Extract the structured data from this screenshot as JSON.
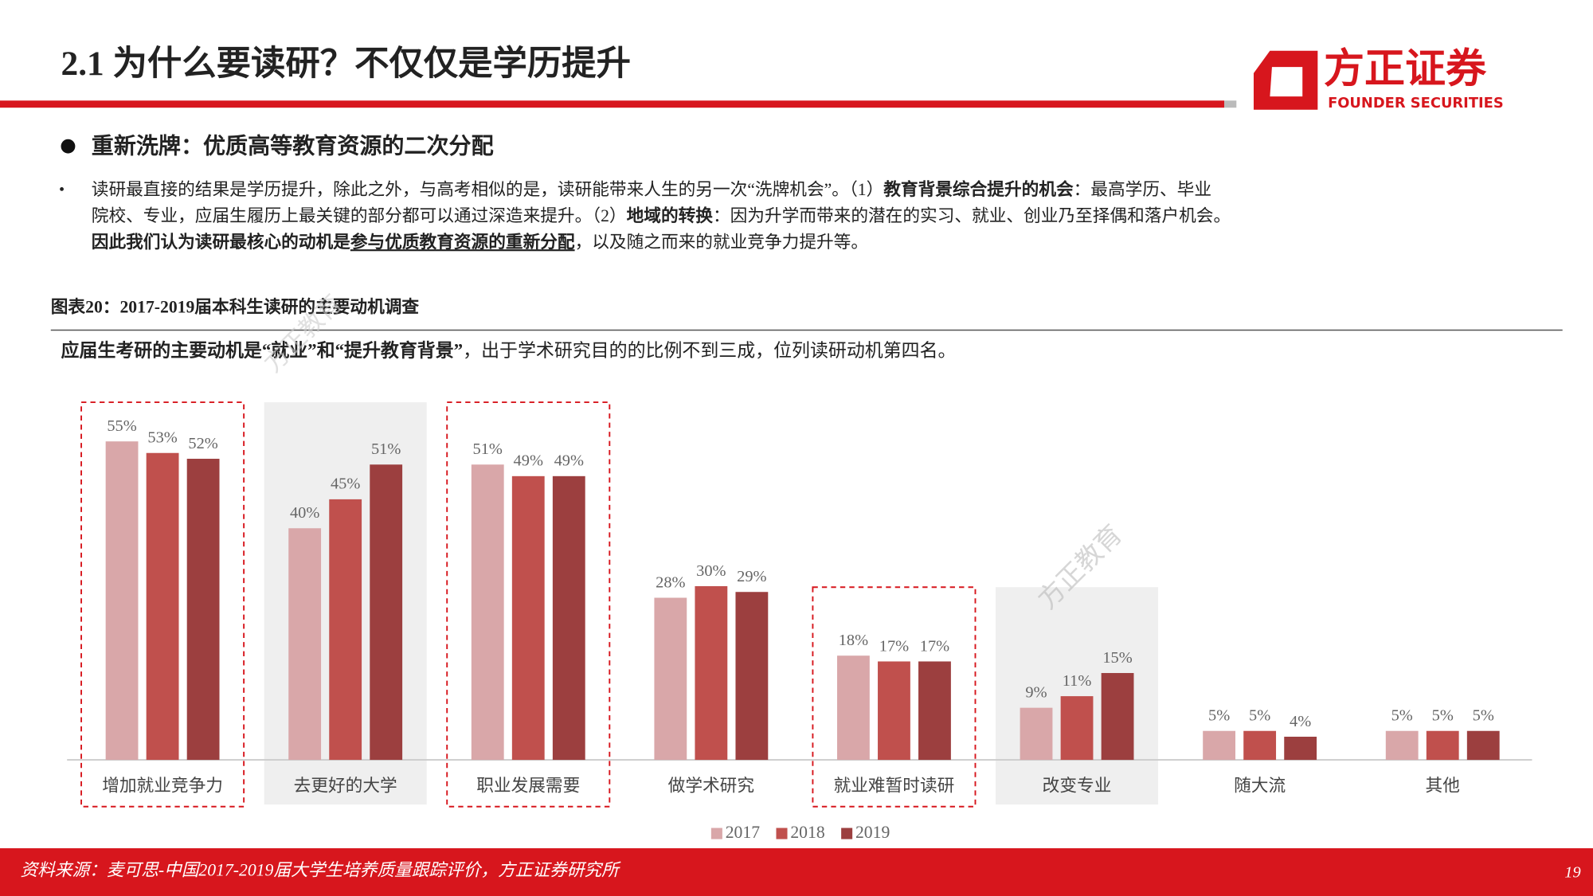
{
  "header": {
    "title": "2.1 为什么要读研？不仅仅是学历提升",
    "logo_cn": "方正证券",
    "logo_en": "FOUNDER SECURITIES"
  },
  "section_title": "重新洗牌：优质高等教育资源的二次分配",
  "paragraph": [
    [
      "读研最直接的结果是学历提升，除此之外，与高考相似的是，读研能带来人生的另一次“洗牌机会”。（1）",
      "教育背景综合提升的机会",
      "：最高学历、毕业"
    ],
    [
      "院校、专业，应届生履历上最关键的部分都可以通过深造来提升。（2）",
      "地域的转换",
      "：因为升学而带来的潜在的实习、就业、创业乃至择偶和落户机会。"
    ],
    [
      "因此我们认为读研最核心的动机是",
      "参与优质教育资源的重新分配",
      "，以及随之而来的就业竞争力提升等。"
    ]
  ],
  "watermark": "方正教育",
  "chart_data": {
    "type": "bar",
    "title": "图表20：2017-2019届本科生读研的主要动机调查",
    "subtitle": [
      "应届生考研的主要动机是“就业”和“提升教育背景”",
      "，出于学术研究目的的比例不到三成，位列读研动机第四名。"
    ],
    "categories": [
      "增加就业竞争力",
      "去更好的大学",
      "职业发展需要",
      "做学术研究",
      "就业难暂时读研",
      "改变专业",
      "随大流",
      "其他"
    ],
    "series": [
      {
        "name": "2017",
        "color": "#d9a7a9",
        "values": [
          55,
          40,
          51,
          28,
          18,
          9,
          5,
          5
        ],
        "value_labels": [
          "55%",
          "40%",
          "51%",
          "28%",
          "18%",
          "9%",
          "5%",
          "5%"
        ]
      },
      {
        "name": "2018",
        "color": "#c0504d",
        "values": [
          53,
          45,
          49,
          30,
          17,
          11,
          5,
          5
        ],
        "value_labels": [
          "53%",
          "45%",
          "49%",
          "30%",
          "17%",
          "11%",
          "5%",
          "5%"
        ]
      },
      {
        "name": "2019",
        "color": "#9c3f3f",
        "values": [
          52,
          51,
          49,
          29,
          17,
          15,
          4,
          5
        ],
        "value_labels": [
          "52%",
          "51%",
          "49%",
          "29%",
          "17%",
          "15%",
          "4%",
          "5%"
        ]
      }
    ],
    "legend": "bottom"
  },
  "footer": {
    "source": "资料来源：麦可思-中国2017-2019届大学生培养质量跟踪评价，方正证券研究所",
    "page": "19"
  }
}
